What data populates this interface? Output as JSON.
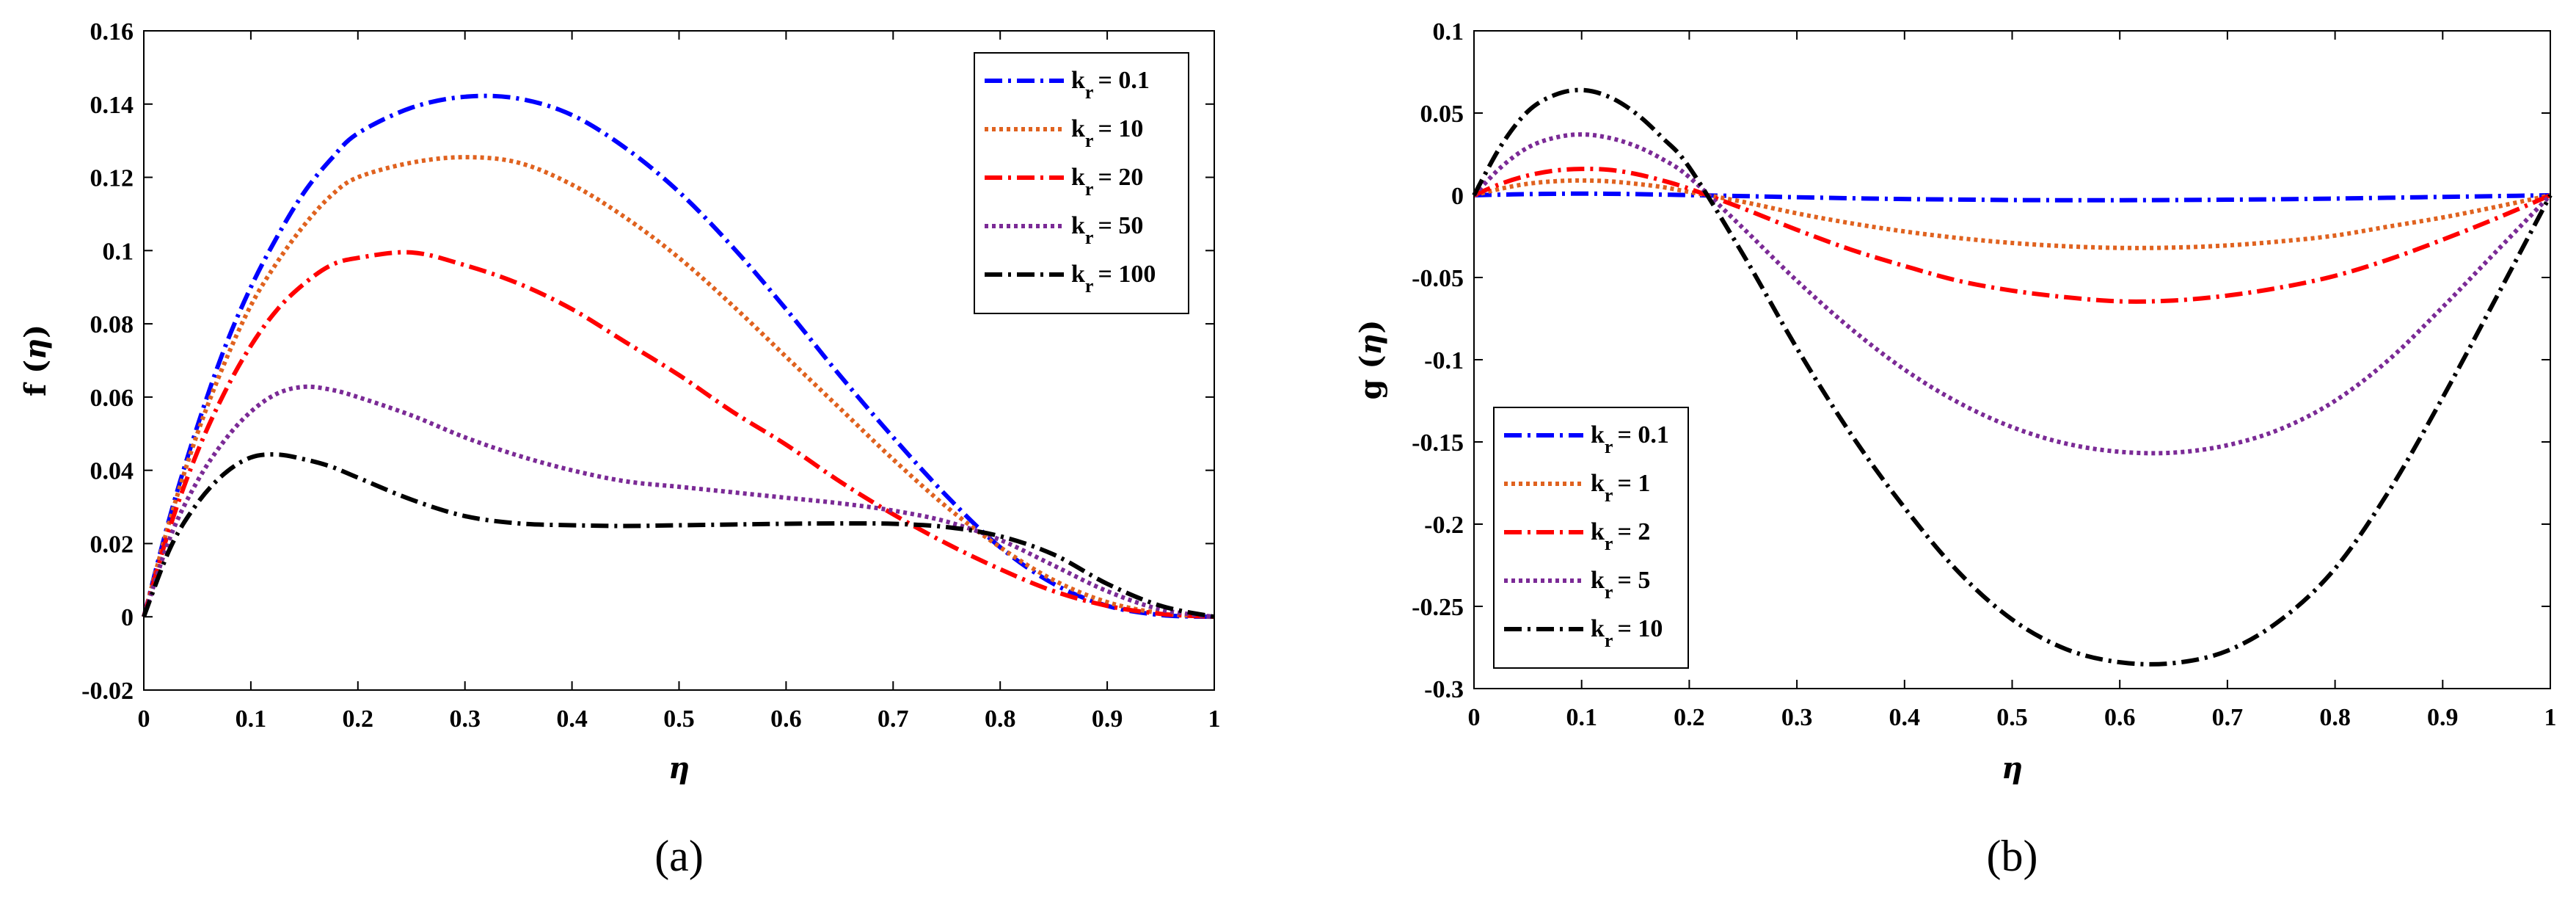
{
  "chart_data": [
    {
      "type": "line",
      "panel_label": "(a)",
      "xlabel": "η",
      "ylabel_main": "f (",
      "ylabel_var": "η",
      "ylabel_close": ")",
      "xlim": [
        0,
        1
      ],
      "ylim": [
        -0.02,
        0.16
      ],
      "x_ticks": [
        0,
        0.1,
        0.2,
        0.3,
        0.4,
        0.5,
        0.6,
        0.7,
        0.8,
        0.9,
        1
      ],
      "x_tick_labels": [
        "0",
        "0.1",
        "0.2",
        "0.3",
        "0.4",
        "0.5",
        "0.6",
        "0.7",
        "0.8",
        "0.9",
        "1"
      ],
      "y_ticks": [
        -0.02,
        0,
        0.02,
        0.04,
        0.06,
        0.08,
        0.1,
        0.12,
        0.14,
        0.16
      ],
      "y_tick_labels": [
        "-0.02",
        "0",
        "0.02",
        "0.04",
        "0.06",
        "0.08",
        "0.1",
        "0.12",
        "0.14",
        "0.16"
      ],
      "legend_position": "top-right",
      "x": [
        0,
        0.025,
        0.05,
        0.075,
        0.1,
        0.125,
        0.15,
        0.175,
        0.2,
        0.25,
        0.3,
        0.35,
        0.4,
        0.45,
        0.5,
        0.55,
        0.6,
        0.65,
        0.7,
        0.75,
        0.8,
        0.85,
        0.9,
        0.95,
        1
      ],
      "series": [
        {
          "name": "k_r = 0.1",
          "symbol": "k",
          "sub": "r",
          "value_text": "= 0.1",
          "color": "#0000ff",
          "dash": "24,8,4,8",
          "values": [
            0,
            0.028,
            0.052,
            0.073,
            0.09,
            0.104,
            0.116,
            0.125,
            0.132,
            0.139,
            0.142,
            0.1415,
            0.137,
            0.128,
            0.116,
            0.101,
            0.084,
            0.066,
            0.049,
            0.033,
            0.019,
            0.009,
            0.003,
            0.0005,
            0
          ]
        },
        {
          "name": "k_r = 10",
          "symbol": "k",
          "sub": "r",
          "value_text": "= 10",
          "color": "#e0621f",
          "dash": "5,5",
          "values": [
            0,
            0.027,
            0.05,
            0.069,
            0.085,
            0.097,
            0.107,
            0.115,
            0.12,
            0.124,
            0.1255,
            0.124,
            0.118,
            0.109,
            0.098,
            0.085,
            0.071,
            0.057,
            0.043,
            0.03,
            0.019,
            0.01,
            0.004,
            0.001,
            0
          ]
        },
        {
          "name": "k_r = 20",
          "symbol": "k",
          "sub": "r",
          "value_text": "= 20",
          "color": "#ff0000",
          "dash": "24,8,4,8",
          "values": [
            0,
            0.025,
            0.045,
            0.061,
            0.074,
            0.084,
            0.091,
            0.096,
            0.098,
            0.0995,
            0.096,
            0.091,
            0.084,
            0.075,
            0.066,
            0.056,
            0.047,
            0.037,
            0.028,
            0.02,
            0.013,
            0.007,
            0.003,
            0.0008,
            0
          ]
        },
        {
          "name": "k_r = 50",
          "symbol": "k",
          "sub": "r",
          "value_text": "= 50",
          "color": "#7b2a96",
          "dash": "5,5",
          "values": [
            0,
            0.022,
            0.037,
            0.048,
            0.056,
            0.061,
            0.0628,
            0.062,
            0.06,
            0.055,
            0.049,
            0.044,
            0.04,
            0.037,
            0.0355,
            0.034,
            0.0325,
            0.031,
            0.029,
            0.026,
            0.021,
            0.014,
            0.007,
            0.002,
            0
          ]
        },
        {
          "name": "k_r = 100",
          "symbol": "k",
          "sub": "r",
          "value_text": "= 100",
          "color": "#000000",
          "dash": "24,8,4,8",
          "values": [
            0,
            0.019,
            0.031,
            0.039,
            0.0435,
            0.0443,
            0.043,
            0.041,
            0.038,
            0.032,
            0.0275,
            0.0255,
            0.025,
            0.0248,
            0.025,
            0.0252,
            0.0254,
            0.0255,
            0.0254,
            0.0245,
            0.022,
            0.017,
            0.009,
            0.003,
            0
          ]
        }
      ]
    },
    {
      "type": "line",
      "panel_label": "(b)",
      "xlabel": "η",
      "ylabel_main": "g (",
      "ylabel_var": "η",
      "ylabel_close": ")",
      "xlim": [
        0,
        1
      ],
      "ylim": [
        -0.3,
        0.1
      ],
      "x_ticks": [
        0,
        0.1,
        0.2,
        0.3,
        0.4,
        0.5,
        0.6,
        0.7,
        0.8,
        0.9,
        1
      ],
      "x_tick_labels": [
        "0",
        "0.1",
        "0.2",
        "0.3",
        "0.4",
        "0.5",
        "0.6",
        "0.7",
        "0.8",
        "0.9",
        "1"
      ],
      "y_ticks": [
        -0.3,
        -0.25,
        -0.2,
        -0.15,
        -0.1,
        -0.05,
        0,
        0.05,
        0.1
      ],
      "y_tick_labels": [
        "-0.3",
        "-0.25",
        "-0.2",
        "-0.15",
        "-0.1",
        "-0.05",
        "0",
        "0.05",
        "0.1"
      ],
      "legend_position": "bottom-left",
      "x": [
        0,
        0.025,
        0.05,
        0.075,
        0.1,
        0.125,
        0.15,
        0.175,
        0.2,
        0.25,
        0.3,
        0.35,
        0.4,
        0.45,
        0.5,
        0.55,
        0.6,
        0.65,
        0.7,
        0.75,
        0.8,
        0.85,
        0.9,
        0.95,
        1
      ],
      "series": [
        {
          "name": "k_r = 0.1",
          "symbol": "k",
          "sub": "r",
          "value_text": "= 0.1",
          "color": "#0000ff",
          "dash": "24,8,4,8",
          "values": [
            0,
            0.0004,
            0.0007,
            0.0009,
            0.001,
            0.0009,
            0.0007,
            0.0004,
            0.0001,
            -0.0005,
            -0.0012,
            -0.0018,
            -0.0023,
            -0.0026,
            -0.0029,
            -0.003,
            -0.003,
            -0.0029,
            -0.0027,
            -0.0024,
            -0.002,
            -0.0015,
            -0.001,
            -0.0005,
            0
          ]
        },
        {
          "name": "k_r = 1",
          "symbol": "k",
          "sub": "r",
          "value_text": "= 1",
          "color": "#e0621f",
          "dash": "5,5",
          "values": [
            0,
            0.004,
            0.007,
            0.0085,
            0.009,
            0.0085,
            0.007,
            0.005,
            0.002,
            -0.004,
            -0.011,
            -0.017,
            -0.022,
            -0.026,
            -0.029,
            -0.031,
            -0.032,
            -0.0318,
            -0.0305,
            -0.028,
            -0.0245,
            -0.019,
            -0.0135,
            -0.007,
            0
          ]
        },
        {
          "name": "k_r = 2",
          "symbol": "k",
          "sub": "r",
          "value_text": "= 2",
          "color": "#ff0000",
          "dash": "24,8,4,8",
          "values": [
            0,
            0.007,
            0.012,
            0.015,
            0.016,
            0.0155,
            0.013,
            0.009,
            0.004,
            -0.008,
            -0.021,
            -0.033,
            -0.043,
            -0.052,
            -0.058,
            -0.062,
            -0.0645,
            -0.064,
            -0.061,
            -0.056,
            -0.049,
            -0.039,
            -0.027,
            -0.014,
            0
          ]
        },
        {
          "name": "k_r = 5",
          "symbol": "k",
          "sub": "r",
          "value_text": "= 5",
          "color": "#7b2a96",
          "dash": "5,5",
          "values": [
            0,
            0.017,
            0.029,
            0.035,
            0.037,
            0.035,
            0.03,
            0.022,
            0.011,
            -0.02,
            -0.052,
            -0.081,
            -0.106,
            -0.126,
            -0.141,
            -0.151,
            -0.156,
            -0.1565,
            -0.152,
            -0.142,
            -0.125,
            -0.1,
            -0.068,
            -0.034,
            0
          ]
        },
        {
          "name": "k_r = 10",
          "symbol": "k",
          "sub": "r",
          "value_text": "= 10",
          "color": "#000000",
          "dash": "24,8,4,8",
          "values": [
            0,
            0.03,
            0.051,
            0.061,
            0.064,
            0.06,
            0.05,
            0.035,
            0.017,
            -0.036,
            -0.093,
            -0.145,
            -0.19,
            -0.229,
            -0.258,
            -0.276,
            -0.284,
            -0.2845,
            -0.277,
            -0.258,
            -0.227,
            -0.18,
            -0.123,
            -0.062,
            0
          ]
        }
      ]
    }
  ]
}
